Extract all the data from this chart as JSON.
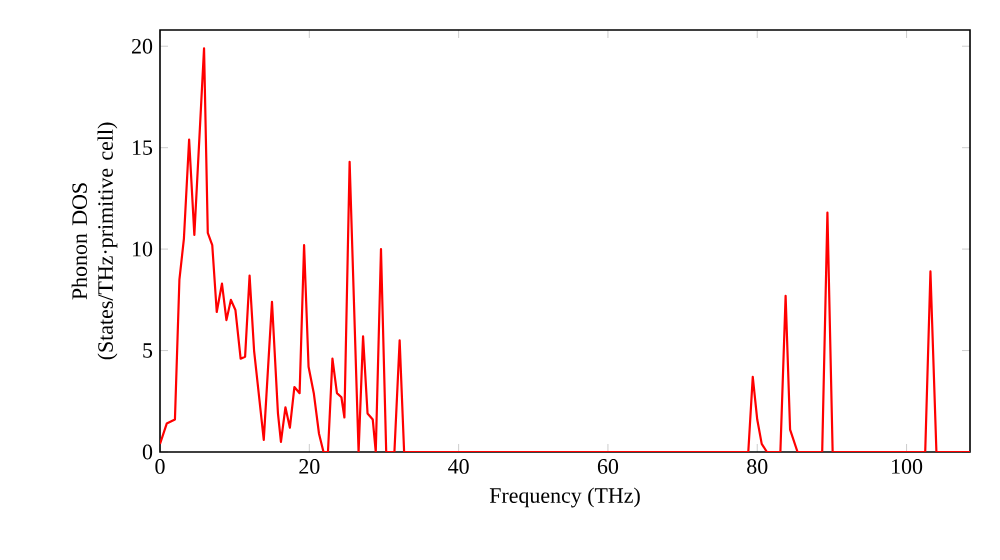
{
  "chart_data": {
    "type": "line",
    "xlabel": "Frequency (THz)",
    "ylabel": "Phonon DOS (States/THz·primitive cell)",
    "x": [
      0,
      0.9,
      2.0,
      2.6,
      3.2,
      3.9,
      4.6,
      5.9,
      6.4,
      7.0,
      7.6,
      8.3,
      8.9,
      9.5,
      10.1,
      10.8,
      11.4,
      12.0,
      12.6,
      13.9,
      15.0,
      15.8,
      16.2,
      16.8,
      17.4,
      18.0,
      18.7,
      19.3,
      19.9,
      20.6,
      21.3,
      21.9,
      22.5,
      23.1,
      23.7,
      24.3,
      24.7,
      25.4,
      26.6,
      27.2,
      27.8,
      28.5,
      28.9,
      29.6,
      30.3,
      31.4,
      32.1,
      32.7,
      78.8,
      79.4,
      80.0,
      80.6,
      81.3,
      83.1,
      83.8,
      84.4,
      85.4,
      88.7,
      89.4,
      90.1,
      102.5,
      103.2,
      104.0,
      108.5
    ],
    "values": [
      0.4,
      1.4,
      1.6,
      8.5,
      10.5,
      15.4,
      10.7,
      19.9,
      10.8,
      10.2,
      6.9,
      8.3,
      6.5,
      7.5,
      7.0,
      4.6,
      4.7,
      8.7,
      5.0,
      0.6,
      7.4,
      1.9,
      0.5,
      2.2,
      1.2,
      3.2,
      2.9,
      10.2,
      4.2,
      2.9,
      0.9,
      0,
      0,
      4.6,
      2.9,
      2.7,
      1.7,
      14.3,
      0,
      5.7,
      1.9,
      1.6,
      0,
      10.0,
      0,
      0,
      5.5,
      0,
      0,
      3.7,
      1.6,
      0.4,
      0,
      0,
      7.7,
      1.1,
      0,
      0,
      11.8,
      0,
      0,
      8.9,
      0,
      0
    ],
    "color": "#ff0000",
    "xlim": [
      0,
      108.5
    ],
    "ylim": [
      0,
      20.8
    ],
    "xticks": [
      0,
      20,
      40,
      60,
      80,
      100
    ],
    "yticks": [
      0,
      5,
      10,
      15,
      20
    ]
  }
}
